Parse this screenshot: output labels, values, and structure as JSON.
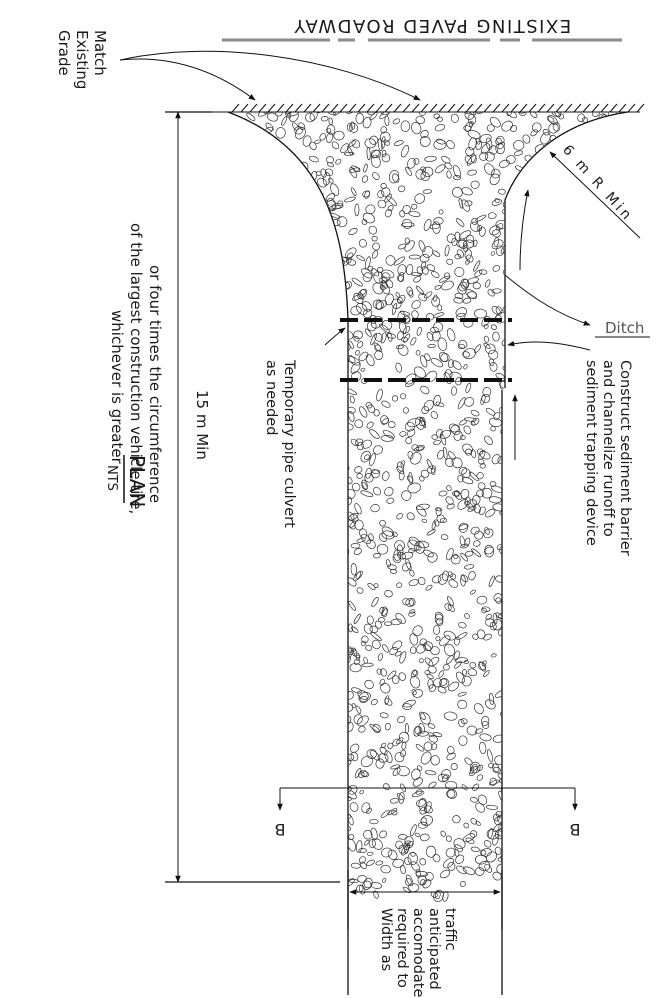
{
  "title": "EXISTING PAVED ROADWAY",
  "labels": {
    "match_grade": [
      "Match",
      "Existing",
      "Grade"
    ],
    "radius": "6 m R Min",
    "ditch": "Ditch",
    "sediment": [
      "Construct sediment barrier",
      "and channelize runoff to",
      "sediment trapping device"
    ],
    "culvert": [
      "Temporary pipe culvert",
      "as needed"
    ],
    "length": "15 m Min",
    "length_note": [
      "or four times the circumference",
      "of the largest construction vehicle tire,",
      "whichever is greater"
    ],
    "width_note": [
      "Width as",
      "required to",
      "accomodate",
      "anticipated",
      "traffic"
    ],
    "section_marker": "B",
    "plan": "PLAN",
    "nts": "NTS"
  },
  "colors": {
    "line": "#111111",
    "road_dash": "#8a8a8a",
    "stone": "#333333"
  }
}
